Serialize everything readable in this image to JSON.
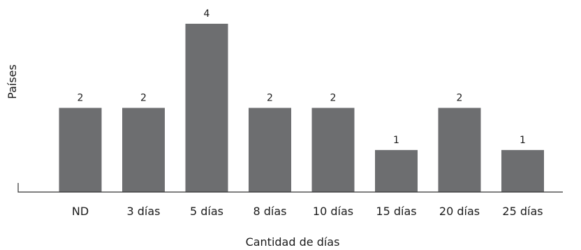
{
  "chart_data": {
    "type": "bar",
    "categories": [
      "ND",
      "3 días",
      "5 días",
      "8 días",
      "10 días",
      "15 días",
      "20 días",
      "25 días"
    ],
    "values": [
      2,
      2,
      4,
      2,
      2,
      1,
      2,
      1
    ],
    "data_labels": [
      "2",
      "2",
      "4",
      "2",
      "2",
      "1",
      "2",
      "1"
    ],
    "xlabel": "Cantidad de días",
    "ylabel": "Países",
    "ylim": [
      0,
      4
    ],
    "bar_color": "#6d6e70",
    "grid": false,
    "legend": false
  }
}
